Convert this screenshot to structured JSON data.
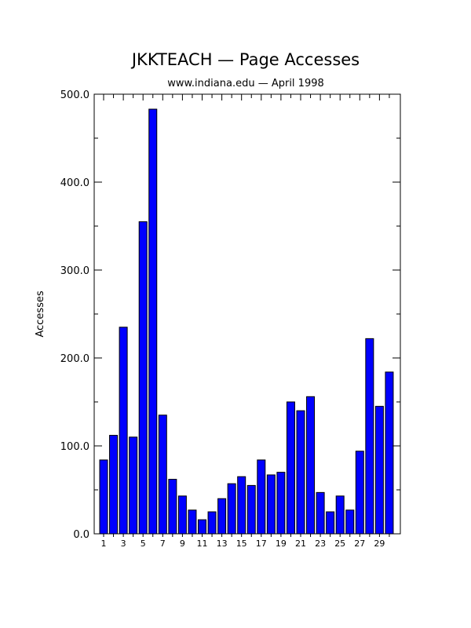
{
  "chart_data": {
    "type": "bar",
    "title": "JKKTEACH — Page Accesses",
    "subtitle": "www.indiana.edu — April 1998",
    "xlabel": "",
    "ylabel": "Accesses",
    "ylim": [
      0,
      500
    ],
    "yticks": [
      "0.0",
      "100.0",
      "200.0",
      "300.0",
      "400.0",
      "500.0"
    ],
    "xtick_labels": [
      "1",
      "3",
      "5",
      "7",
      "9",
      "11",
      "13",
      "15",
      "17",
      "19",
      "21",
      "23",
      "25",
      "27",
      "29"
    ],
    "categories": [
      1,
      2,
      3,
      4,
      5,
      6,
      7,
      8,
      9,
      10,
      11,
      12,
      13,
      14,
      15,
      16,
      17,
      18,
      19,
      20,
      21,
      22,
      23,
      24,
      25,
      26,
      27,
      28,
      29,
      30
    ],
    "values": [
      84,
      112,
      235,
      110,
      355,
      483,
      135,
      62,
      43,
      27,
      16,
      25,
      40,
      57,
      65,
      55,
      84,
      67,
      70,
      150,
      140,
      156,
      47,
      25,
      43,
      27,
      94,
      222,
      145,
      184
    ],
    "bar_color": "#0000ff",
    "grid": false,
    "legend": "none"
  }
}
